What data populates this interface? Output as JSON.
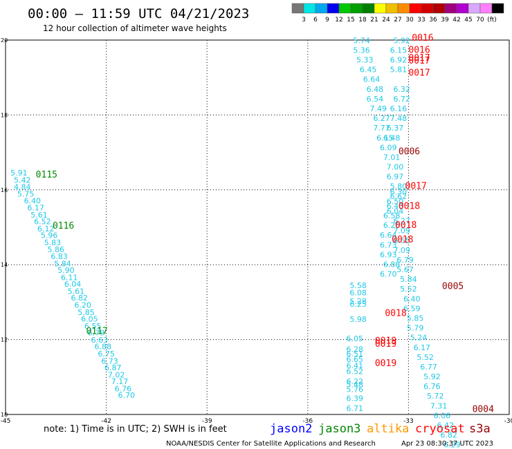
{
  "header": {
    "title": "00:00 – 11:59 UTC 04/21/2023",
    "subtitle": "12 hour collection of altimeter wave heights"
  },
  "colorbar": {
    "colors": [
      "#777777",
      "#00e6e6",
      "#00a8f0",
      "#0000ee",
      "#00c800",
      "#00a000",
      "#008000",
      "#ffff00",
      "#f0c000",
      "#ff8c00",
      "#ff0000",
      "#d40000",
      "#b00000",
      "#a00080",
      "#b000d0",
      "#d8a8ff",
      "#ff80ff",
      "#000000"
    ],
    "labels": [
      "3",
      "6",
      "9",
      "12",
      "15",
      "18",
      "21",
      "24",
      "27",
      "30",
      "33",
      "36",
      "39",
      "42",
      "45",
      "70",
      "(ft)"
    ]
  },
  "footer": {
    "note": "note:  1) Time is in UTC;  2) SWH is in feet",
    "satellites": [
      {
        "name": "jason2",
        "color": "#0000ff"
      },
      {
        "name": "jason3",
        "color": "#008800"
      },
      {
        "name": "altika",
        "color": "#ff9900"
      },
      {
        "name": "cryosat",
        "color": "#ff0000"
      },
      {
        "name": "s3a",
        "color": "#990000"
      }
    ],
    "credit": "NOAA/NESDIS Center for Satellite Applications and Research",
    "timestamp": "Apr 23 08:30:37 UTC 2023"
  },
  "chart_data": {
    "type": "scatter",
    "xlim": [
      -45,
      -30
    ],
    "ylim": [
      10,
      20
    ],
    "xticks": [
      "-45",
      "-42",
      "-39",
      "-36",
      "-33",
      "-30"
    ],
    "yticks": [
      "10",
      "12",
      "14",
      "16",
      "18",
      "20"
    ],
    "grid": true,
    "value_color": "#1ec8e6",
    "series": [
      {
        "name": "track-left",
        "points": [
          [
            -44.6,
            16.38,
            "5.91"
          ],
          [
            -44.5,
            16.19,
            "5.42"
          ],
          [
            -44.5,
            16.01,
            "4.84"
          ],
          [
            -44.4,
            15.82,
            "5.75"
          ],
          [
            -44.2,
            15.64,
            "6.40"
          ],
          [
            -44.1,
            15.45,
            "6.17"
          ],
          [
            -44.0,
            15.26,
            "5.61"
          ],
          [
            -43.9,
            15.08,
            "6.52"
          ],
          [
            -43.8,
            14.89,
            "6.12"
          ],
          [
            -43.7,
            14.71,
            "5.96"
          ],
          [
            -43.6,
            14.52,
            "5.83"
          ],
          [
            -43.5,
            14.34,
            "5.86"
          ],
          [
            -43.4,
            14.15,
            "6.83"
          ],
          [
            -43.3,
            13.96,
            "5.84"
          ],
          [
            -43.2,
            13.78,
            "5.90"
          ],
          [
            -43.1,
            13.59,
            "6.11"
          ],
          [
            -43.0,
            13.41,
            "6.04"
          ],
          [
            -42.9,
            13.22,
            "5.61"
          ],
          [
            -42.8,
            13.04,
            "6.82"
          ],
          [
            -42.7,
            12.85,
            "6.20"
          ],
          [
            -42.6,
            12.66,
            "5.85"
          ],
          [
            -42.5,
            12.48,
            "6.05"
          ],
          [
            -42.4,
            12.29,
            "6.55"
          ],
          [
            -42.3,
            12.11,
            "6.79"
          ],
          [
            -42.2,
            11.92,
            "6.63"
          ],
          [
            -42.1,
            11.74,
            "6.88"
          ],
          [
            -42.0,
            11.55,
            "6.75"
          ],
          [
            -41.9,
            11.36,
            "6.73"
          ],
          [
            -41.8,
            11.18,
            "6.87"
          ],
          [
            -41.7,
            10.99,
            "7.02"
          ],
          [
            -41.6,
            10.81,
            "7.17"
          ],
          [
            -41.5,
            10.62,
            "6.76"
          ],
          [
            -41.4,
            10.44,
            "6.70"
          ]
        ]
      },
      {
        "name": "track-middle",
        "points": [
          [
            -34.4,
            19.92,
            "5.74"
          ],
          [
            -34.4,
            19.66,
            "5.36"
          ],
          [
            -34.3,
            19.4,
            "5.33"
          ],
          [
            -34.2,
            19.14,
            "6.45"
          ],
          [
            -34.1,
            18.88,
            "6.64"
          ],
          [
            -34.0,
            18.62,
            "6.48"
          ],
          [
            -34.0,
            18.36,
            "6.54"
          ],
          [
            -33.9,
            18.1,
            "7.49"
          ],
          [
            -33.8,
            17.84,
            "6.27"
          ],
          [
            -33.8,
            17.58,
            "7.77"
          ],
          [
            -33.7,
            17.32,
            "6.15"
          ],
          [
            -33.6,
            17.06,
            "6.09"
          ],
          [
            -33.5,
            16.8,
            "7.01"
          ],
          [
            -33.4,
            16.54,
            "7.00"
          ],
          [
            -33.4,
            16.28,
            "6.97"
          ],
          [
            -33.3,
            16.02,
            "5.80"
          ],
          [
            -33.3,
            15.76,
            "6.62"
          ],
          [
            -33.4,
            15.5,
            "6.43"
          ],
          [
            -33.5,
            15.24,
            "6.58"
          ],
          [
            -33.5,
            14.98,
            "6.26"
          ],
          [
            -33.6,
            14.72,
            "6.64"
          ],
          [
            -33.6,
            14.46,
            "6.73"
          ],
          [
            -33.6,
            14.2,
            "6.93"
          ],
          [
            -33.5,
            13.94,
            "6.88"
          ],
          [
            -33.6,
            13.68,
            "6.70"
          ]
        ]
      },
      {
        "name": "track-right",
        "points": [
          [
            -33.2,
            19.92,
            "5.92"
          ],
          [
            -33.3,
            19.66,
            "6.15"
          ],
          [
            -33.3,
            19.4,
            "6.92"
          ],
          [
            -33.3,
            19.14,
            "5.81"
          ],
          [
            -33.2,
            18.62,
            "6.32"
          ],
          [
            -33.2,
            18.36,
            "6.72"
          ],
          [
            -33.3,
            18.1,
            "6.16"
          ],
          [
            -33.3,
            17.84,
            "7.48"
          ],
          [
            -33.4,
            17.58,
            "6.37"
          ],
          [
            -33.5,
            17.32,
            "6.48"
          ],
          [
            -33.3,
            15.88,
            "6.30"
          ],
          [
            -33.4,
            15.62,
            "6.50"
          ],
          [
            -33.4,
            15.36,
            "6.04"
          ],
          [
            -33.2,
            15.1,
            "6.27"
          ],
          [
            -33.2,
            14.84,
            "7.09"
          ],
          [
            -33.2,
            14.58,
            "6.55"
          ],
          [
            -33.2,
            14.32,
            "7.09"
          ],
          [
            -33.1,
            14.06,
            "6.79"
          ],
          [
            -33.1,
            13.8,
            "5.67"
          ],
          [
            -33.0,
            13.54,
            "5.84"
          ],
          [
            -33.0,
            13.28,
            "5.52"
          ],
          [
            -32.9,
            13.02,
            "6.40"
          ],
          [
            -32.9,
            12.76,
            "6.59"
          ],
          [
            -32.8,
            12.5,
            "5.85"
          ],
          [
            -32.8,
            12.24,
            "5.79"
          ],
          [
            -32.7,
            11.98,
            "5.24"
          ],
          [
            -32.6,
            11.72,
            "6.17"
          ],
          [
            -32.5,
            11.46,
            "5.52"
          ],
          [
            -32.4,
            11.2,
            "6.77"
          ],
          [
            -32.3,
            10.94,
            "5.92"
          ],
          [
            -32.3,
            10.68,
            "6.76"
          ],
          [
            -32.2,
            10.42,
            "5.72"
          ],
          [
            -32.1,
            10.16,
            "7.31"
          ],
          [
            -32.0,
            9.9,
            "6.06"
          ],
          [
            -31.9,
            9.64,
            "6.42"
          ],
          [
            -31.8,
            9.38,
            "6.82"
          ],
          [
            -31.7,
            9.12,
            "6.29"
          ]
        ]
      },
      {
        "name": "track-lower",
        "points": [
          [
            -34.5,
            13.38,
            "5.58"
          ],
          [
            -34.5,
            13.18,
            "6.08"
          ],
          [
            -34.5,
            12.95,
            "5.28"
          ],
          [
            -34.5,
            12.88,
            "6.25"
          ],
          [
            -34.5,
            12.47,
            "5.98"
          ],
          [
            -34.6,
            11.96,
            "6.05"
          ],
          [
            -34.6,
            11.67,
            "6.28"
          ],
          [
            -34.6,
            11.55,
            "6.51"
          ],
          [
            -34.6,
            11.4,
            "6.65"
          ],
          [
            -34.6,
            11.24,
            "6.41"
          ],
          [
            -34.6,
            11.08,
            "6.52"
          ],
          [
            -34.6,
            10.81,
            "6.22"
          ],
          [
            -34.6,
            10.73,
            "5.48"
          ],
          [
            -34.6,
            10.6,
            "5.76"
          ],
          [
            -34.6,
            10.36,
            "6.39"
          ],
          [
            -34.6,
            10.09,
            "6.71"
          ]
        ]
      }
    ],
    "labels": [
      {
        "x": -44.1,
        "y": 16.33,
        "text": "0115",
        "color": "#008800"
      },
      {
        "x": -43.6,
        "y": 14.96,
        "text": "0116",
        "color": "#008800"
      },
      {
        "x": -42.6,
        "y": 12.15,
        "text": "0117",
        "color": "#008800"
      },
      {
        "x": -32.9,
        "y": 19.98,
        "text": "0016",
        "color": "#ff0000"
      },
      {
        "x": -33.0,
        "y": 19.66,
        "text": "0016",
        "color": "#ff0000"
      },
      {
        "x": -33.0,
        "y": 19.45,
        "text": "0017",
        "color": "#ff0000"
      },
      {
        "x": -33.0,
        "y": 19.37,
        "text": "0017",
        "color": "#ff0000"
      },
      {
        "x": -33.0,
        "y": 19.05,
        "text": "0017",
        "color": "#ff0000"
      },
      {
        "x": -33.3,
        "y": 16.95,
        "text": "0006",
        "color": "#990000"
      },
      {
        "x": -33.1,
        "y": 16.02,
        "text": "0017",
        "color": "#ff0000"
      },
      {
        "x": -33.3,
        "y": 15.49,
        "text": "0018",
        "color": "#ff0000"
      },
      {
        "x": -33.4,
        "y": 14.98,
        "text": "0018",
        "color": "#ff0000"
      },
      {
        "x": -33.5,
        "y": 14.59,
        "text": "0018",
        "color": "#ff0000"
      },
      {
        "x": -32.0,
        "y": 13.35,
        "text": "0005",
        "color": "#990000"
      },
      {
        "x": -33.7,
        "y": 12.63,
        "text": "0018",
        "color": "#ff0000"
      },
      {
        "x": -34.0,
        "y": 11.89,
        "text": "0019",
        "color": "#ff0000"
      },
      {
        "x": -34.0,
        "y": 11.81,
        "text": "0019",
        "color": "#ff0000"
      },
      {
        "x": -34.0,
        "y": 11.29,
        "text": "0019",
        "color": "#ff0000"
      },
      {
        "x": -31.1,
        "y": 10.06,
        "text": "0004",
        "color": "#990000"
      }
    ]
  }
}
